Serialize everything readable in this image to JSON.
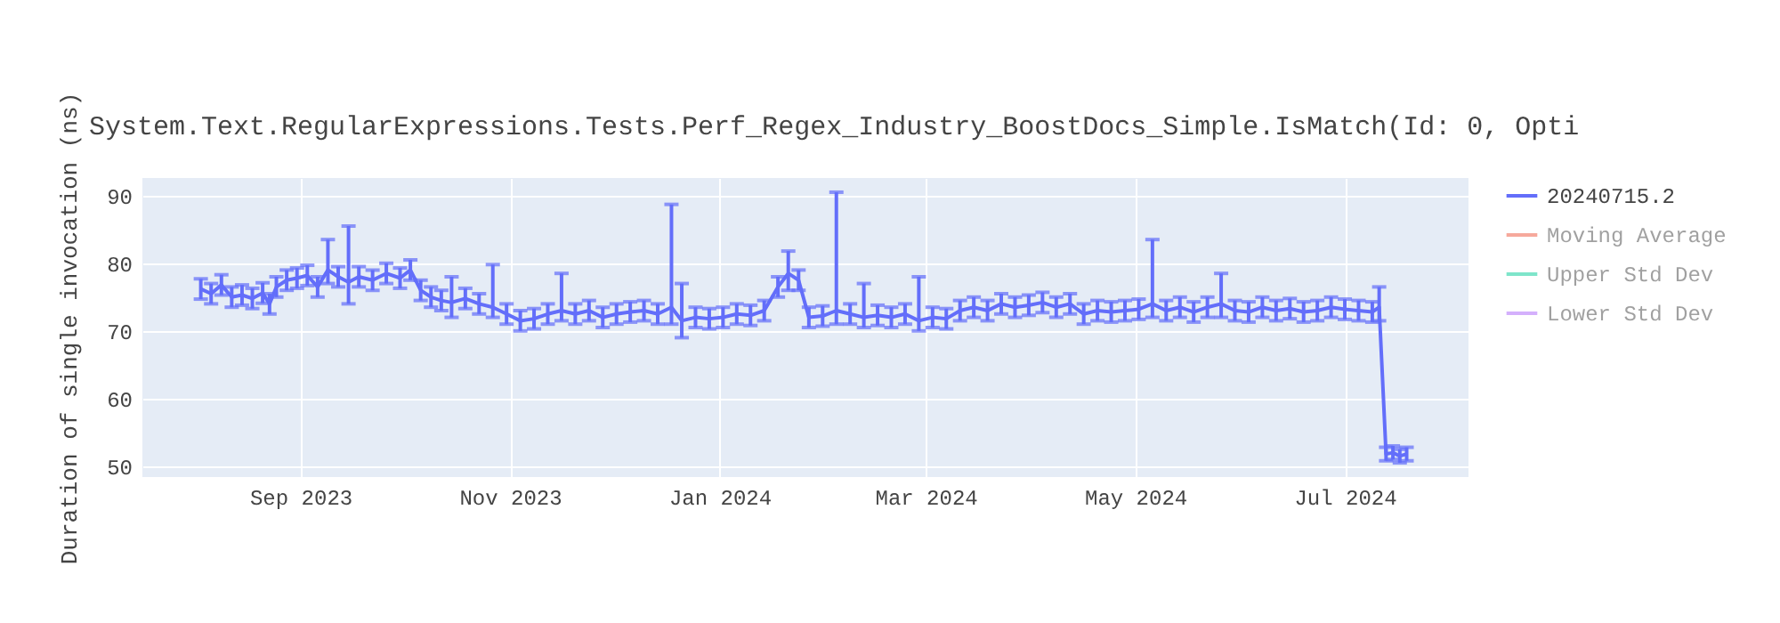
{
  "chart_data": {
    "type": "line",
    "title": "System.Text.RegularExpressions.Tests.Perf_Regex_Industry_BoostDocs_Simple.IsMatch(Id: 0, Opti",
    "ylabel": "Duration of single invocation (ns)",
    "x": [
      "2023-08-03",
      "2023-08-06",
      "2023-08-09",
      "2023-08-12",
      "2023-08-15",
      "2023-08-18",
      "2023-08-21",
      "2023-08-23",
      "2023-08-25",
      "2023-08-28",
      "2023-08-31",
      "2023-09-03",
      "2023-09-06",
      "2023-09-09",
      "2023-09-12",
      "2023-09-15",
      "2023-09-18",
      "2023-09-22",
      "2023-09-26",
      "2023-09-30",
      "2023-10-03",
      "2023-10-06",
      "2023-10-09",
      "2023-10-12",
      "2023-10-15",
      "2023-10-19",
      "2023-10-23",
      "2023-10-27",
      "2023-10-31",
      "2023-11-04",
      "2023-11-08",
      "2023-11-12",
      "2023-11-16",
      "2023-11-20",
      "2023-11-24",
      "2023-11-28",
      "2023-12-02",
      "2023-12-06",
      "2023-12-10",
      "2023-12-14",
      "2023-12-18",
      "2023-12-21",
      "2023-12-25",
      "2023-12-29",
      "2024-01-02",
      "2024-01-06",
      "2024-01-10",
      "2024-01-14",
      "2024-01-18",
      "2024-01-21",
      "2024-01-24",
      "2024-01-27",
      "2024-01-31",
      "2024-02-04",
      "2024-02-08",
      "2024-02-12",
      "2024-02-16",
      "2024-02-20",
      "2024-02-24",
      "2024-02-28",
      "2024-03-03",
      "2024-03-07",
      "2024-03-11",
      "2024-03-15",
      "2024-03-19",
      "2024-03-23",
      "2024-03-27",
      "2024-03-31",
      "2024-04-04",
      "2024-04-08",
      "2024-04-12",
      "2024-04-16",
      "2024-04-20",
      "2024-04-24",
      "2024-04-28",
      "2024-05-02",
      "2024-05-06",
      "2024-05-10",
      "2024-05-14",
      "2024-05-18",
      "2024-05-22",
      "2024-05-26",
      "2024-05-30",
      "2024-06-03",
      "2024-06-07",
      "2024-06-11",
      "2024-06-15",
      "2024-06-19",
      "2024-06-23",
      "2024-06-27",
      "2024-07-01",
      "2024-07-05",
      "2024-07-09",
      "2024-07-11",
      "2024-07-13",
      "2024-07-15",
      "2024-07-17",
      "2024-07-19"
    ],
    "series": [
      {
        "name": "20240715.2",
        "color": "#636efa",
        "values": [
          76.2,
          75.5,
          76.8,
          75.0,
          75.3,
          74.8,
          75.6,
          74.0,
          76.5,
          77.5,
          77.8,
          78.2,
          76.5,
          79.0,
          78.0,
          77.2,
          78.0,
          77.5,
          78.5,
          77.8,
          79.0,
          76.0,
          75.0,
          74.5,
          74.2,
          74.8,
          74.0,
          73.5,
          72.5,
          71.5,
          71.8,
          72.5,
          73.0,
          72.5,
          73.0,
          72.0,
          72.5,
          72.8,
          73.0,
          72.5,
          73.5,
          71.5,
          72.0,
          71.8,
          72.0,
          72.5,
          72.3,
          73.0,
          76.5,
          78.5,
          77.5,
          72.0,
          72.2,
          73.0,
          72.5,
          72.0,
          72.3,
          72.0,
          72.5,
          71.5,
          72.0,
          71.8,
          73.0,
          73.5,
          73.0,
          74.0,
          73.5,
          73.8,
          74.2,
          73.5,
          74.0,
          72.5,
          73.0,
          72.8,
          73.0,
          73.2,
          74.0,
          73.0,
          73.5,
          72.8,
          73.5,
          74.0,
          73.0,
          72.8,
          73.5,
          73.0,
          73.3,
          72.8,
          73.0,
          73.5,
          73.2,
          73.0,
          72.8,
          73.5,
          51.8,
          52.0,
          51.5,
          51.8
        ],
        "errors": [
          1.5,
          1.5,
          1.5,
          1.5,
          1.5,
          1.5,
          1.5,
          1.5,
          1.5,
          1.5,
          1.5,
          1.5,
          1.5,
          [
            77,
            83.5
          ],
          1.5,
          [
            74,
            85.5
          ],
          1.5,
          1.5,
          1.5,
          1.5,
          1.5,
          1.5,
          1.5,
          1.5,
          [
            72,
            78
          ],
          1.5,
          1.5,
          [
            72,
            79.8
          ],
          1.5,
          1.5,
          1.5,
          1.5,
          [
            71.5,
            78.5
          ],
          1.5,
          1.5,
          1.5,
          1.5,
          1.5,
          1.5,
          1.5,
          [
            71,
            88.7
          ],
          [
            69,
            77
          ],
          1.5,
          1.5,
          1.5,
          1.5,
          1.5,
          1.5,
          1.5,
          [
            76,
            81.8
          ],
          1.5,
          1.5,
          1.5,
          [
            71,
            90.5
          ],
          1.5,
          [
            70.5,
            77
          ],
          1.5,
          1.5,
          1.5,
          [
            70,
            78
          ],
          1.5,
          1.5,
          1.5,
          1.5,
          1.5,
          1.5,
          1.5,
          1.5,
          1.5,
          1.5,
          1.5,
          1.5,
          1.5,
          1.5,
          1.5,
          1.5,
          [
            72,
            83.5
          ],
          1.5,
          1.5,
          1.5,
          1.5,
          [
            72,
            78.5
          ],
          1.5,
          1.5,
          1.5,
          1.5,
          1.5,
          1.5,
          1.5,
          1.5,
          1.5,
          1.5,
          1.5,
          [
            71.5,
            76.5
          ],
          1,
          1,
          1,
          1
        ]
      },
      {
        "name": "Moving Average",
        "color": "#ef553b",
        "values": [
          null,
          null,
          null,
          null,
          null,
          null,
          null,
          null,
          null,
          null,
          null,
          null,
          null,
          null,
          null,
          null,
          null,
          null,
          null,
          null,
          null,
          null,
          null,
          null,
          null,
          null,
          null,
          null,
          null,
          null,
          null,
          null,
          null,
          null,
          null,
          null,
          null,
          null,
          null,
          null,
          null,
          null,
          null,
          null,
          null,
          null,
          null,
          null,
          null,
          null,
          null,
          null,
          null,
          null,
          null,
          null,
          null,
          null,
          null,
          null,
          null,
          null,
          null,
          null,
          null,
          null,
          null,
          null,
          null,
          null,
          null,
          null,
          null,
          null,
          null,
          null,
          null,
          null,
          null,
          null,
          null,
          null,
          null,
          null,
          null,
          null,
          null,
          null,
          null,
          null,
          null,
          null,
          null,
          null,
          null,
          null,
          null,
          null
        ]
      },
      {
        "name": "Upper Std Dev",
        "color": "#00cc96",
        "values": [
          null,
          null,
          null,
          null,
          null,
          null,
          null,
          null,
          null,
          null,
          null,
          null,
          null,
          null,
          null,
          null,
          null,
          null,
          null,
          null,
          null,
          null,
          null,
          null,
          null,
          null,
          null,
          null,
          null,
          null,
          null,
          null,
          null,
          null,
          null,
          null,
          null,
          null,
          null,
          null,
          null,
          null,
          null,
          null,
          null,
          null,
          null,
          null,
          null,
          null,
          null,
          null,
          null,
          null,
          null,
          null,
          null,
          null,
          null,
          null,
          null,
          null,
          null,
          null,
          null,
          null,
          null,
          null,
          null,
          null,
          null,
          null,
          null,
          null,
          null,
          null,
          null,
          null,
          null,
          null,
          null,
          null,
          null,
          null,
          null,
          null,
          null,
          null,
          null,
          null,
          null,
          null,
          null,
          null,
          null,
          null,
          null,
          null
        ]
      },
      {
        "name": "Lower Std Dev",
        "color": "#ab63fa",
        "values": [
          null,
          null,
          null,
          null,
          null,
          null,
          null,
          null,
          null,
          null,
          null,
          null,
          null,
          null,
          null,
          null,
          null,
          null,
          null,
          null,
          null,
          null,
          null,
          null,
          null,
          null,
          null,
          null,
          null,
          null,
          null,
          null,
          null,
          null,
          null,
          null,
          null,
          null,
          null,
          null,
          null,
          null,
          null,
          null,
          null,
          null,
          null,
          null,
          null,
          null,
          null,
          null,
          null,
          null,
          null,
          null,
          null,
          null,
          null,
          null,
          null,
          null,
          null,
          null,
          null,
          null,
          null,
          null,
          null,
          null,
          null,
          null,
          null,
          null,
          null,
          null,
          null,
          null,
          null,
          null,
          null,
          null,
          null,
          null,
          null,
          null,
          null,
          null,
          null,
          null,
          null,
          null,
          null,
          null,
          null,
          null,
          null,
          null
        ]
      }
    ],
    "xlim": [
      "2023-07-17",
      "2024-08-06"
    ],
    "xticks": [
      {
        "value": "2023-09-01",
        "label": "Sep 2023"
      },
      {
        "value": "2023-11-01",
        "label": "Nov 2023"
      },
      {
        "value": "2024-01-01",
        "label": "Jan 2024"
      },
      {
        "value": "2024-03-01",
        "label": "Mar 2024"
      },
      {
        "value": "2024-05-01",
        "label": "May 2024"
      },
      {
        "value": "2024-07-01",
        "label": "Jul 2024"
      }
    ],
    "ylim": [
      48.4,
      92.6
    ],
    "yticks": [
      50,
      60,
      70,
      80,
      90
    ],
    "grid": true,
    "legend": "right",
    "marker": "none",
    "line_style": "solid"
  }
}
